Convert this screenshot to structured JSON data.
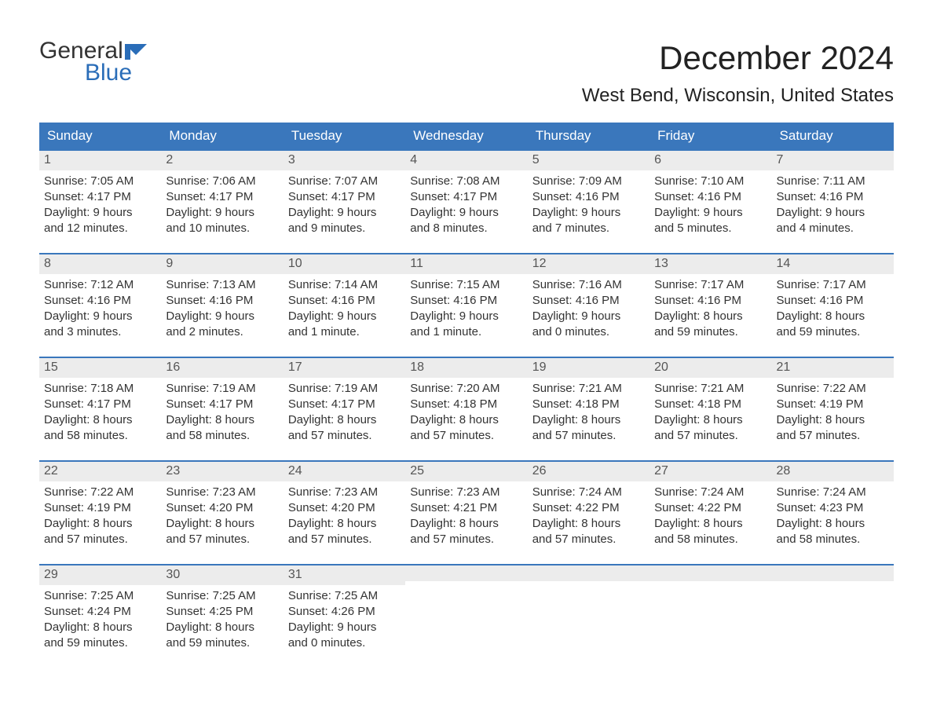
{
  "logo": {
    "text_top": "General",
    "text_bottom": "Blue",
    "flag_color": "#2a6db8"
  },
  "title": "December 2024",
  "subtitle": "West Bend, Wisconsin, United States",
  "header_bg": "#3a77bc",
  "header_fg": "#ffffff",
  "daynum_bg": "#ececec",
  "week_border": "#3a77bc",
  "day_headers": [
    "Sunday",
    "Monday",
    "Tuesday",
    "Wednesday",
    "Thursday",
    "Friday",
    "Saturday"
  ],
  "weeks": [
    [
      {
        "n": "1",
        "sunrise": "Sunrise: 7:05 AM",
        "sunset": "Sunset: 4:17 PM",
        "d1": "Daylight: 9 hours",
        "d2": "and 12 minutes."
      },
      {
        "n": "2",
        "sunrise": "Sunrise: 7:06 AM",
        "sunset": "Sunset: 4:17 PM",
        "d1": "Daylight: 9 hours",
        "d2": "and 10 minutes."
      },
      {
        "n": "3",
        "sunrise": "Sunrise: 7:07 AM",
        "sunset": "Sunset: 4:17 PM",
        "d1": "Daylight: 9 hours",
        "d2": "and 9 minutes."
      },
      {
        "n": "4",
        "sunrise": "Sunrise: 7:08 AM",
        "sunset": "Sunset: 4:17 PM",
        "d1": "Daylight: 9 hours",
        "d2": "and 8 minutes."
      },
      {
        "n": "5",
        "sunrise": "Sunrise: 7:09 AM",
        "sunset": "Sunset: 4:16 PM",
        "d1": "Daylight: 9 hours",
        "d2": "and 7 minutes."
      },
      {
        "n": "6",
        "sunrise": "Sunrise: 7:10 AM",
        "sunset": "Sunset: 4:16 PM",
        "d1": "Daylight: 9 hours",
        "d2": "and 5 minutes."
      },
      {
        "n": "7",
        "sunrise": "Sunrise: 7:11 AM",
        "sunset": "Sunset: 4:16 PM",
        "d1": "Daylight: 9 hours",
        "d2": "and 4 minutes."
      }
    ],
    [
      {
        "n": "8",
        "sunrise": "Sunrise: 7:12 AM",
        "sunset": "Sunset: 4:16 PM",
        "d1": "Daylight: 9 hours",
        "d2": "and 3 minutes."
      },
      {
        "n": "9",
        "sunrise": "Sunrise: 7:13 AM",
        "sunset": "Sunset: 4:16 PM",
        "d1": "Daylight: 9 hours",
        "d2": "and 2 minutes."
      },
      {
        "n": "10",
        "sunrise": "Sunrise: 7:14 AM",
        "sunset": "Sunset: 4:16 PM",
        "d1": "Daylight: 9 hours",
        "d2": "and 1 minute."
      },
      {
        "n": "11",
        "sunrise": "Sunrise: 7:15 AM",
        "sunset": "Sunset: 4:16 PM",
        "d1": "Daylight: 9 hours",
        "d2": "and 1 minute."
      },
      {
        "n": "12",
        "sunrise": "Sunrise: 7:16 AM",
        "sunset": "Sunset: 4:16 PM",
        "d1": "Daylight: 9 hours",
        "d2": "and 0 minutes."
      },
      {
        "n": "13",
        "sunrise": "Sunrise: 7:17 AM",
        "sunset": "Sunset: 4:16 PM",
        "d1": "Daylight: 8 hours",
        "d2": "and 59 minutes."
      },
      {
        "n": "14",
        "sunrise": "Sunrise: 7:17 AM",
        "sunset": "Sunset: 4:16 PM",
        "d1": "Daylight: 8 hours",
        "d2": "and 59 minutes."
      }
    ],
    [
      {
        "n": "15",
        "sunrise": "Sunrise: 7:18 AM",
        "sunset": "Sunset: 4:17 PM",
        "d1": "Daylight: 8 hours",
        "d2": "and 58 minutes."
      },
      {
        "n": "16",
        "sunrise": "Sunrise: 7:19 AM",
        "sunset": "Sunset: 4:17 PM",
        "d1": "Daylight: 8 hours",
        "d2": "and 58 minutes."
      },
      {
        "n": "17",
        "sunrise": "Sunrise: 7:19 AM",
        "sunset": "Sunset: 4:17 PM",
        "d1": "Daylight: 8 hours",
        "d2": "and 57 minutes."
      },
      {
        "n": "18",
        "sunrise": "Sunrise: 7:20 AM",
        "sunset": "Sunset: 4:18 PM",
        "d1": "Daylight: 8 hours",
        "d2": "and 57 minutes."
      },
      {
        "n": "19",
        "sunrise": "Sunrise: 7:21 AM",
        "sunset": "Sunset: 4:18 PM",
        "d1": "Daylight: 8 hours",
        "d2": "and 57 minutes."
      },
      {
        "n": "20",
        "sunrise": "Sunrise: 7:21 AM",
        "sunset": "Sunset: 4:18 PM",
        "d1": "Daylight: 8 hours",
        "d2": "and 57 minutes."
      },
      {
        "n": "21",
        "sunrise": "Sunrise: 7:22 AM",
        "sunset": "Sunset: 4:19 PM",
        "d1": "Daylight: 8 hours",
        "d2": "and 57 minutes."
      }
    ],
    [
      {
        "n": "22",
        "sunrise": "Sunrise: 7:22 AM",
        "sunset": "Sunset: 4:19 PM",
        "d1": "Daylight: 8 hours",
        "d2": "and 57 minutes."
      },
      {
        "n": "23",
        "sunrise": "Sunrise: 7:23 AM",
        "sunset": "Sunset: 4:20 PM",
        "d1": "Daylight: 8 hours",
        "d2": "and 57 minutes."
      },
      {
        "n": "24",
        "sunrise": "Sunrise: 7:23 AM",
        "sunset": "Sunset: 4:20 PM",
        "d1": "Daylight: 8 hours",
        "d2": "and 57 minutes."
      },
      {
        "n": "25",
        "sunrise": "Sunrise: 7:23 AM",
        "sunset": "Sunset: 4:21 PM",
        "d1": "Daylight: 8 hours",
        "d2": "and 57 minutes."
      },
      {
        "n": "26",
        "sunrise": "Sunrise: 7:24 AM",
        "sunset": "Sunset: 4:22 PM",
        "d1": "Daylight: 8 hours",
        "d2": "and 57 minutes."
      },
      {
        "n": "27",
        "sunrise": "Sunrise: 7:24 AM",
        "sunset": "Sunset: 4:22 PM",
        "d1": "Daylight: 8 hours",
        "d2": "and 58 minutes."
      },
      {
        "n": "28",
        "sunrise": "Sunrise: 7:24 AM",
        "sunset": "Sunset: 4:23 PM",
        "d1": "Daylight: 8 hours",
        "d2": "and 58 minutes."
      }
    ],
    [
      {
        "n": "29",
        "sunrise": "Sunrise: 7:25 AM",
        "sunset": "Sunset: 4:24 PM",
        "d1": "Daylight: 8 hours",
        "d2": "and 59 minutes."
      },
      {
        "n": "30",
        "sunrise": "Sunrise: 7:25 AM",
        "sunset": "Sunset: 4:25 PM",
        "d1": "Daylight: 8 hours",
        "d2": "and 59 minutes."
      },
      {
        "n": "31",
        "sunrise": "Sunrise: 7:25 AM",
        "sunset": "Sunset: 4:26 PM",
        "d1": "Daylight: 9 hours",
        "d2": "and 0 minutes."
      },
      {
        "n": "",
        "sunrise": "",
        "sunset": "",
        "d1": "",
        "d2": ""
      },
      {
        "n": "",
        "sunrise": "",
        "sunset": "",
        "d1": "",
        "d2": ""
      },
      {
        "n": "",
        "sunrise": "",
        "sunset": "",
        "d1": "",
        "d2": ""
      },
      {
        "n": "",
        "sunrise": "",
        "sunset": "",
        "d1": "",
        "d2": ""
      }
    ]
  ]
}
